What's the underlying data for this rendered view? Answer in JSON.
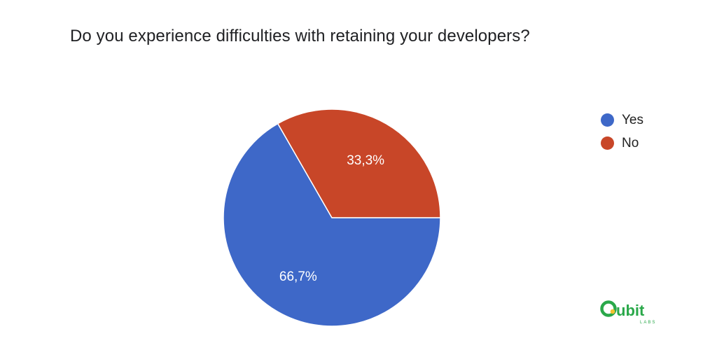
{
  "chart_data": {
    "type": "pie",
    "title": "Do you experience difficulties with retaining your developers?",
    "categories": [
      "Yes",
      "No"
    ],
    "values": [
      66.7,
      33.3
    ],
    "labels": [
      "66,7%",
      "33,3%"
    ],
    "colors": [
      "#3e68c8",
      "#c84628"
    ],
    "legend_position": "right",
    "start": "3 o'clock",
    "direction": "clockwise"
  },
  "logo": {
    "name": "Qubit",
    "subtitle": "LABS",
    "color": "#2aa84a"
  }
}
